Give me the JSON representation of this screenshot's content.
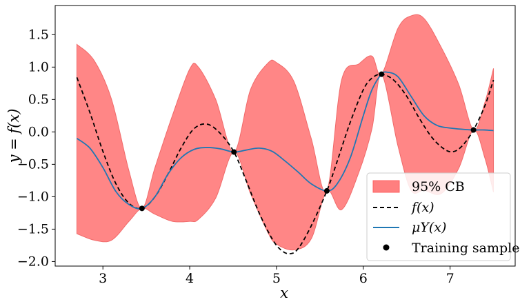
{
  "chart_data": {
    "type": "line",
    "xlabel": "x",
    "ylabel": "y = f(x)",
    "xlim": [
      2.45,
      7.75
    ],
    "ylim": [
      -2.07,
      1.95
    ],
    "xticks": [
      3,
      4,
      5,
      6,
      7
    ],
    "yticks": [
      -2.0,
      -1.5,
      -1.0,
      -0.5,
      0.0,
      0.5,
      1.0,
      1.5
    ],
    "xtick_labels": [
      "3",
      "4",
      "5",
      "6",
      "7"
    ],
    "ytick_labels": [
      "−2.0",
      "−1.5",
      "−1.0",
      "−0.5",
      "0.0",
      "0.5",
      "1.0",
      "1.5"
    ],
    "legend_position": "lower-right",
    "legend": [
      "95% CB",
      "f(x)",
      "μY(x)",
      "Training samples"
    ],
    "series": [
      {
        "name": "95% CB",
        "kind": "band",
        "color": "#ff7f7f",
        "x": [
          2.7,
          2.9,
          3.1,
          3.3,
          3.45,
          3.6,
          3.8,
          4.0,
          4.1,
          4.3,
          4.51,
          4.7,
          4.9,
          5.0,
          5.2,
          5.4,
          5.58,
          5.75,
          5.95,
          6.1,
          6.21,
          6.4,
          6.55,
          6.7,
          6.9,
          7.1,
          7.27,
          7.4,
          7.5
        ],
        "lower": [
          -1.57,
          -1.67,
          -1.67,
          -1.38,
          -1.18,
          -1.27,
          -1.38,
          -1.38,
          -1.35,
          -1.02,
          -0.31,
          -0.95,
          -1.55,
          -1.73,
          -1.82,
          -1.65,
          -0.91,
          -1.2,
          -0.62,
          0.05,
          0.89,
          -0.22,
          -0.9,
          -0.9,
          -0.95,
          -0.56,
          0.03,
          -0.4,
          -0.93
        ],
        "upper": [
          1.35,
          1.1,
          0.5,
          -0.6,
          -1.18,
          -0.55,
          0.25,
          0.97,
          1.0,
          0.5,
          -0.31,
          0.65,
          1.06,
          1.07,
          0.78,
          -0.1,
          -0.91,
          0.8,
          1.05,
          1.17,
          0.89,
          1.6,
          1.79,
          1.75,
          1.3,
          0.73,
          0.03,
          0.45,
          0.98
        ]
      },
      {
        "name": "f(x)",
        "kind": "line",
        "style": "dashed",
        "color": "#000000",
        "x": [
          2.7,
          2.85,
          3.0,
          3.15,
          3.3,
          3.45,
          3.6,
          3.75,
          3.9,
          4.05,
          4.2,
          4.35,
          4.51,
          4.65,
          4.8,
          4.95,
          5.05,
          5.15,
          5.25,
          5.4,
          5.58,
          5.7,
          5.85,
          6.0,
          6.1,
          6.21,
          6.35,
          6.5,
          6.65,
          6.8,
          6.95,
          7.05,
          7.15,
          7.27,
          7.4,
          7.5
        ],
        "y": [
          0.84,
          0.3,
          -0.3,
          -0.8,
          -1.1,
          -1.18,
          -1.0,
          -0.65,
          -0.25,
          0.05,
          0.12,
          -0.02,
          -0.31,
          -0.75,
          -1.25,
          -1.65,
          -1.82,
          -1.88,
          -1.8,
          -1.45,
          -0.91,
          -0.45,
          0.15,
          0.65,
          0.83,
          0.89,
          0.8,
          0.55,
          0.2,
          -0.1,
          -0.28,
          -0.3,
          -0.2,
          0.03,
          0.4,
          0.8
        ]
      },
      {
        "name": "μY(x)",
        "kind": "line",
        "style": "solid",
        "color": "#1f77b4",
        "x": [
          2.7,
          2.85,
          3.0,
          3.15,
          3.3,
          3.45,
          3.6,
          3.75,
          3.9,
          4.05,
          4.2,
          4.35,
          4.51,
          4.65,
          4.8,
          4.95,
          5.1,
          5.25,
          5.4,
          5.58,
          5.7,
          5.85,
          6.0,
          6.1,
          6.21,
          6.28,
          6.4,
          6.55,
          6.7,
          6.85,
          7.0,
          7.15,
          7.27,
          7.4,
          7.5
        ],
        "y": [
          -0.1,
          -0.25,
          -0.55,
          -0.92,
          -1.12,
          -1.18,
          -1.0,
          -0.65,
          -0.4,
          -0.27,
          -0.24,
          -0.26,
          -0.31,
          -0.28,
          -0.25,
          -0.3,
          -0.45,
          -0.62,
          -0.8,
          -0.91,
          -0.8,
          -0.4,
          0.25,
          0.65,
          0.89,
          0.92,
          0.85,
          0.55,
          0.25,
          0.1,
          0.06,
          0.04,
          0.03,
          0.03,
          0.02
        ]
      },
      {
        "name": "Training samples",
        "kind": "scatter",
        "color": "#000000",
        "x": [
          3.45,
          4.51,
          5.58,
          6.21,
          7.27
        ],
        "y": [
          -1.18,
          -0.31,
          -0.91,
          0.89,
          0.03
        ]
      }
    ]
  }
}
